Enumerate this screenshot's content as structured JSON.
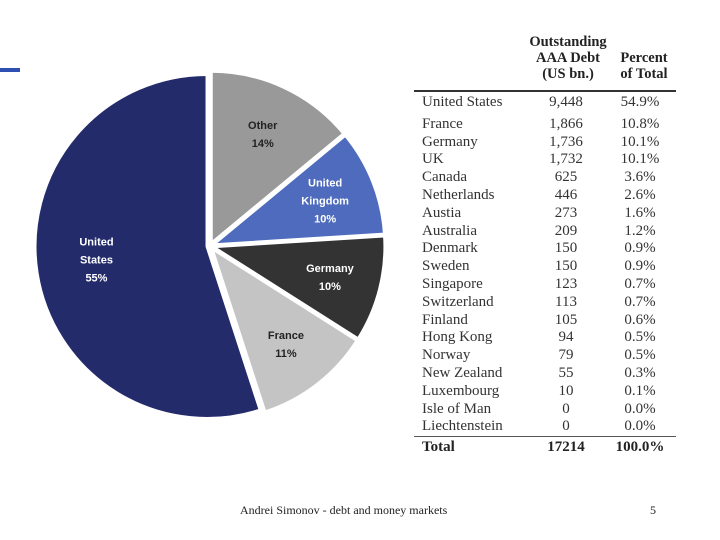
{
  "chart_data": [
    {
      "type": "pie",
      "title": "",
      "slices": [
        {
          "label": [
            "Other"
          ],
          "value_label": "14%",
          "value": 14,
          "color": "#999999",
          "text_color": "#222222"
        },
        {
          "label": [
            "United",
            "Kingdom"
          ],
          "value_label": "10%",
          "value": 10,
          "color": "#4e6bbd",
          "text_color": "#ffffff"
        },
        {
          "label": [
            "Germany"
          ],
          "value_label": "10%",
          "value": 10,
          "color": "#333333",
          "text_color": "#ffffff"
        },
        {
          "label": [
            "France"
          ],
          "value_label": "11%",
          "value": 11,
          "color": "#c4c4c4",
          "text_color": "#222222"
        },
        {
          "label": [
            "United",
            "States"
          ],
          "value_label": "55%",
          "value": 55,
          "color": "#232b6b",
          "text_color": "#ffffff"
        }
      ]
    },
    {
      "type": "table",
      "columns": [
        "",
        "Outstanding AAA Debt (US bn.)",
        "Percent of Total"
      ],
      "header": {
        "debt": [
          "Outstanding",
          "AAA Debt",
          "(US bn.)"
        ],
        "pct": [
          "Percent",
          "of Total"
        ]
      },
      "rows": [
        {
          "country": "United States",
          "debt": "9,448",
          "pct": "54.9%"
        },
        {
          "country": "France",
          "debt": "1,866",
          "pct": "10.8%"
        },
        {
          "country": "Germany",
          "debt": "1,736",
          "pct": "10.1%"
        },
        {
          "country": "UK",
          "debt": "1,732",
          "pct": "10.1%"
        },
        {
          "country": "Canada",
          "debt": "625",
          "pct": "3.6%"
        },
        {
          "country": "Netherlands",
          "debt": "446",
          "pct": "2.6%"
        },
        {
          "country": "Austia",
          "debt": "273",
          "pct": "1.6%"
        },
        {
          "country": "Australia",
          "debt": "209",
          "pct": "1.2%"
        },
        {
          "country": "Denmark",
          "debt": "150",
          "pct": "0.9%"
        },
        {
          "country": "Sweden",
          "debt": "150",
          "pct": "0.9%"
        },
        {
          "country": "Singapore",
          "debt": "123",
          "pct": "0.7%"
        },
        {
          "country": "Switzerland",
          "debt": "113",
          "pct": "0.7%"
        },
        {
          "country": "Finland",
          "debt": "105",
          "pct": "0.6%"
        },
        {
          "country": "Hong Kong",
          "debt": "94",
          "pct": "0.5%"
        },
        {
          "country": "Norway",
          "debt": "79",
          "pct": "0.5%"
        },
        {
          "country": "New Zealand",
          "debt": "55",
          "pct": "0.3%"
        },
        {
          "country": "Luxembourg",
          "debt": "10",
          "pct": "0.1%"
        },
        {
          "country": "Isle of Man",
          "debt": "0",
          "pct": "0.0%"
        },
        {
          "country": "Liechtenstein",
          "debt": "0",
          "pct": "0.0%"
        }
      ],
      "total": {
        "country": "Total",
        "debt": "17214",
        "pct": "100.0%"
      }
    }
  ],
  "footer": {
    "text": "Andrei Simonov - debt and money markets",
    "page": "5"
  },
  "colors": {
    "accent": "#2f4fb3"
  }
}
